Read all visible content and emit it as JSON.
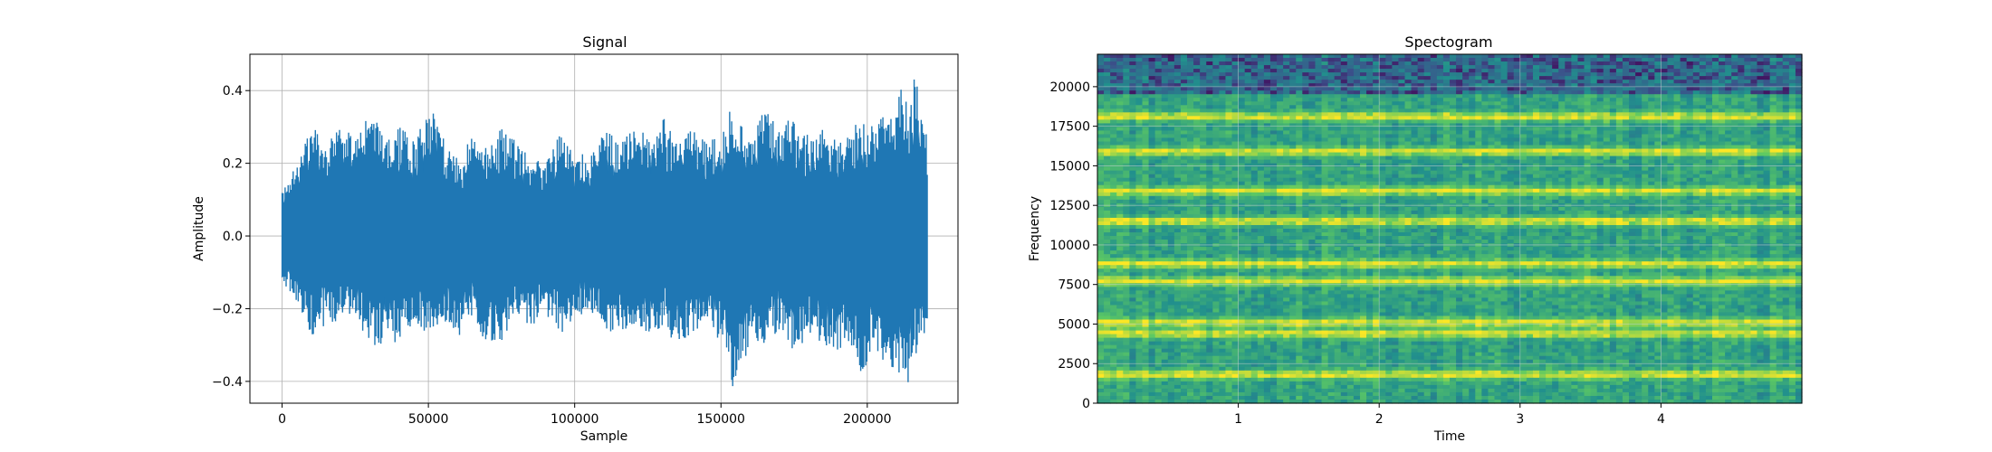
{
  "chart_data": [
    {
      "type": "line",
      "title": "Signal",
      "xlabel": "Sample",
      "ylabel": "Amplitude",
      "xlim": [
        -11000,
        231000
      ],
      "ylim": [
        -0.46,
        0.5
      ],
      "grid": true,
      "color": "#1f77b4",
      "xticks": [
        0,
        50000,
        100000,
        150000,
        200000
      ],
      "xtick_labels": [
        "0",
        "50000",
        "100000",
        "150000",
        "200000"
      ],
      "yticks": [
        -0.4,
        -0.2,
        0.0,
        0.2,
        0.4
      ],
      "ytick_labels": [
        "−0.4",
        "−0.2",
        "0.0",
        "0.2",
        "0.4"
      ],
      "envelope": {
        "sample": [
          0,
          2500,
          6000,
          10000,
          15000,
          20000,
          25000,
          30000,
          32000,
          36000,
          40000,
          45000,
          50000,
          52000,
          56000,
          60000,
          65000,
          70000,
          75000,
          80000,
          85000,
          90000,
          95000,
          100000,
          105000,
          110000,
          115000,
          120000,
          125000,
          130000,
          135000,
          140000,
          145000,
          150000,
          154000,
          158000,
          160000,
          165000,
          170000,
          175000,
          180000,
          185000,
          190000,
          195000,
          198000,
          202000,
          206000,
          210000,
          212000,
          214000,
          216000,
          218000,
          220500
        ],
        "max": [
          0.14,
          0.16,
          0.22,
          0.31,
          0.25,
          0.3,
          0.28,
          0.34,
          0.32,
          0.26,
          0.3,
          0.27,
          0.33,
          0.37,
          0.25,
          0.22,
          0.28,
          0.24,
          0.3,
          0.26,
          0.22,
          0.21,
          0.28,
          0.22,
          0.23,
          0.3,
          0.26,
          0.32,
          0.27,
          0.33,
          0.28,
          0.3,
          0.26,
          0.29,
          0.39,
          0.3,
          0.28,
          0.35,
          0.3,
          0.33,
          0.28,
          0.3,
          0.26,
          0.3,
          0.35,
          0.3,
          0.34,
          0.38,
          0.42,
          0.35,
          0.45,
          0.4,
          0.27
        ],
        "min": [
          -0.13,
          -0.15,
          -0.2,
          -0.28,
          -0.25,
          -0.23,
          -0.22,
          -0.3,
          -0.34,
          -0.28,
          -0.3,
          -0.24,
          -0.27,
          -0.25,
          -0.24,
          -0.28,
          -0.22,
          -0.3,
          -0.29,
          -0.22,
          -0.26,
          -0.21,
          -0.28,
          -0.22,
          -0.21,
          -0.26,
          -0.27,
          -0.24,
          -0.27,
          -0.25,
          -0.3,
          -0.27,
          -0.25,
          -0.3,
          -0.42,
          -0.35,
          -0.28,
          -0.3,
          -0.26,
          -0.32,
          -0.28,
          -0.3,
          -0.32,
          -0.3,
          -0.41,
          -0.3,
          -0.35,
          -0.38,
          -0.38,
          -0.41,
          -0.34,
          -0.3,
          -0.3
        ]
      }
    },
    {
      "type": "heatmap",
      "title": "Spectogram",
      "xlabel": "Time",
      "ylabel": "Frequency",
      "xlim": [
        0,
        5.0
      ],
      "ylim": [
        0,
        22050
      ],
      "grid": true,
      "colormap": [
        "#440154",
        "#3b528b",
        "#21908d",
        "#5dc963",
        "#fde725"
      ],
      "xticks": [
        1,
        2,
        3,
        4
      ],
      "xtick_labels": [
        "1",
        "2",
        "3",
        "4"
      ],
      "yticks": [
        0,
        2500,
        5000,
        7500,
        10000,
        12500,
        15000,
        17500,
        20000
      ],
      "ytick_labels": [
        "0",
        "2500",
        "5000",
        "7500",
        "10000",
        "12500",
        "15000",
        "17500",
        "20000"
      ],
      "bright_bands_hz": [
        1800,
        4400,
        5100,
        7700,
        8800,
        11500,
        13400,
        15900,
        18100
      ],
      "noisy_top_from_hz": 19500
    }
  ]
}
